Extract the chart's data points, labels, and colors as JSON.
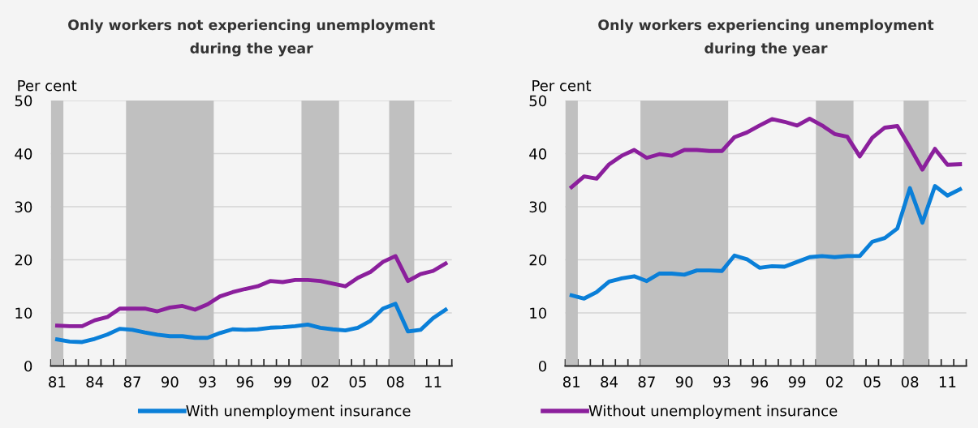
{
  "chart_data": [
    {
      "type": "line",
      "title": "Only workers not experiencing unemployment\nduring the year",
      "ylabel": "Per cent",
      "x": [
        1981,
        1982,
        1983,
        1984,
        1985,
        1986,
        1987,
        1988,
        1989,
        1990,
        1991,
        1992,
        1993,
        1994,
        1995,
        1996,
        1997,
        1998,
        1999,
        2000,
        2001,
        2002,
        2003,
        2004,
        2005,
        2006,
        2007,
        2008,
        2009,
        2010,
        2011,
        2012
      ],
      "series": [
        {
          "name": "With unemployment insurance",
          "color": "#0a7fd8",
          "values": [
            5.0,
            4.6,
            4.5,
            5.1,
            5.9,
            7.0,
            6.8,
            6.3,
            5.9,
            5.6,
            5.6,
            5.3,
            5.3,
            6.2,
            6.9,
            6.8,
            6.9,
            7.2,
            7.3,
            7.5,
            7.8,
            7.2,
            6.9,
            6.7,
            7.2,
            8.5,
            10.8,
            11.7,
            6.5,
            6.8,
            9.0,
            10.6
          ]
        },
        {
          "name": "Without unemployment insurance",
          "color": "#8b1f9c",
          "values": [
            7.6,
            7.5,
            7.5,
            8.6,
            9.2,
            10.8,
            10.8,
            10.8,
            10.3,
            11.0,
            11.3,
            10.6,
            11.6,
            13.1,
            13.9,
            14.5,
            15.0,
            16.0,
            15.8,
            16.2,
            16.2,
            16.0,
            15.5,
            15.0,
            16.6,
            17.7,
            19.6,
            20.7,
            16.0,
            17.3,
            17.9,
            19.3
          ]
        }
      ],
      "xlim": [
        1980.5,
        2012.5
      ],
      "xticks": [
        {
          "value": 1981,
          "label": "81"
        },
        {
          "value": 1984,
          "label": "84"
        },
        {
          "value": 1987,
          "label": "87"
        },
        {
          "value": 1990,
          "label": "90"
        },
        {
          "value": 1993,
          "label": "93"
        },
        {
          "value": 1996,
          "label": "96"
        },
        {
          "value": 1999,
          "label": "99"
        },
        {
          "value": 2002,
          "label": "02"
        },
        {
          "value": 2005,
          "label": "05"
        },
        {
          "value": 2008,
          "label": "08"
        },
        {
          "value": 2011,
          "label": "11"
        },
        {
          "value": 1980.5,
          "label": null
        },
        {
          "value": 1981.5,
          "label": null
        },
        {
          "value": 1982.5,
          "label": null
        },
        {
          "value": 1983.5,
          "label": null
        },
        {
          "value": 1984.5,
          "label": null
        },
        {
          "value": 1985.5,
          "label": null
        },
        {
          "value": 1986.5,
          "label": null
        },
        {
          "value": 1987.5,
          "label": null
        },
        {
          "value": 1988.5,
          "label": null
        },
        {
          "value": 1989.5,
          "label": null
        },
        {
          "value": 1990.5,
          "label": null
        },
        {
          "value": 1991.5,
          "label": null
        },
        {
          "value": 1992.5,
          "label": null
        },
        {
          "value": 1993.5,
          "label": null
        },
        {
          "value": 1994.5,
          "label": null
        },
        {
          "value": 1995.5,
          "label": null
        },
        {
          "value": 1996.5,
          "label": null
        },
        {
          "value": 1997.5,
          "label": null
        },
        {
          "value": 1998.5,
          "label": null
        },
        {
          "value": 1999.5,
          "label": null
        },
        {
          "value": 2000.5,
          "label": null
        },
        {
          "value": 2001.5,
          "label": null
        },
        {
          "value": 2002.5,
          "label": null
        },
        {
          "value": 2003.5,
          "label": null
        },
        {
          "value": 2004.5,
          "label": null
        },
        {
          "value": 2005.5,
          "label": null
        },
        {
          "value": 2006.5,
          "label": null
        },
        {
          "value": 2007.5,
          "label": null
        },
        {
          "value": 2008.5,
          "label": null
        },
        {
          "value": 2009.5,
          "label": null
        },
        {
          "value": 2010.5,
          "label": null
        },
        {
          "value": 2011.5,
          "label": null
        },
        {
          "value": 2012.5,
          "label": null
        }
      ],
      "ylim": [
        0,
        50
      ],
      "yticks": [
        0,
        10,
        20,
        30,
        40,
        50
      ],
      "grid": "y",
      "legend": "bottom",
      "bands": [
        {
          "axis": "x",
          "from": 1980.5,
          "to": 1981.5,
          "color": "#c0c0c0"
        },
        {
          "axis": "x",
          "from": 1986.5,
          "to": 1993.5,
          "color": "#c0c0c0"
        },
        {
          "axis": "x",
          "from": 2000.5,
          "to": 2003.5,
          "color": "#c0c0c0"
        },
        {
          "axis": "x",
          "from": 2007.5,
          "to": 2009.5,
          "color": "#c0c0c0"
        }
      ]
    },
    {
      "type": "line",
      "title": "Only workers experiencing unemployment\nduring the year",
      "ylabel": "Per cent",
      "x": [
        1981,
        1982,
        1983,
        1984,
        1985,
        1986,
        1987,
        1988,
        1989,
        1990,
        1991,
        1992,
        1993,
        1994,
        1995,
        1996,
        1997,
        1998,
        1999,
        2000,
        2001,
        2002,
        2003,
        2004,
        2005,
        2006,
        2007,
        2008,
        2009,
        2010,
        2011,
        2012
      ],
      "series": [
        {
          "color": "#0a7fd8",
          "values": [
            13.3,
            12.7,
            13.9,
            15.9,
            16.5,
            16.9,
            16.0,
            17.4,
            17.4,
            17.2,
            18.0,
            18.0,
            17.9,
            20.8,
            20.1,
            18.5,
            18.8,
            18.7,
            19.6,
            20.5,
            20.7,
            20.5,
            20.7,
            20.7,
            23.4,
            24.1,
            25.9,
            33.5,
            27.0,
            33.9,
            32.1,
            33.3
          ]
        },
        {
          "color": "#8b1f9c",
          "values": [
            33.7,
            35.7,
            35.3,
            38.0,
            39.6,
            40.7,
            39.2,
            39.9,
            39.6,
            40.7,
            40.7,
            40.5,
            40.5,
            43.1,
            44.0,
            45.3,
            46.5,
            46.0,
            45.3,
            46.6,
            45.3,
            43.7,
            43.2,
            39.5,
            43.0,
            44.9,
            45.2,
            41.2,
            37.0,
            40.9,
            37.9,
            38.0
          ]
        }
      ],
      "xlim": [
        1980.5,
        2012.5
      ],
      "xticks": [
        {
          "value": 1981,
          "label": "81"
        },
        {
          "value": 1984,
          "label": "84"
        },
        {
          "value": 1987,
          "label": "87"
        },
        {
          "value": 1990,
          "label": "90"
        },
        {
          "value": 1993,
          "label": "93"
        },
        {
          "value": 1996,
          "label": "96"
        },
        {
          "value": 1999,
          "label": "99"
        },
        {
          "value": 2002,
          "label": "02"
        },
        {
          "value": 2005,
          "label": "05"
        },
        {
          "value": 2008,
          "label": "08"
        },
        {
          "value": 2011,
          "label": "11"
        },
        {
          "value": 1980.5,
          "label": null
        },
        {
          "value": 1981.5,
          "label": null
        },
        {
          "value": 1982.5,
          "label": null
        },
        {
          "value": 1983.5,
          "label": null
        },
        {
          "value": 1984.5,
          "label": null
        },
        {
          "value": 1985.5,
          "label": null
        },
        {
          "value": 1986.5,
          "label": null
        },
        {
          "value": 1987.5,
          "label": null
        },
        {
          "value": 1988.5,
          "label": null
        },
        {
          "value": 1989.5,
          "label": null
        },
        {
          "value": 1990.5,
          "label": null
        },
        {
          "value": 1991.5,
          "label": null
        },
        {
          "value": 1992.5,
          "label": null
        },
        {
          "value": 1993.5,
          "label": null
        },
        {
          "value": 1994.5,
          "label": null
        },
        {
          "value": 1995.5,
          "label": null
        },
        {
          "value": 1996.5,
          "label": null
        },
        {
          "value": 1997.5,
          "label": null
        },
        {
          "value": 1998.5,
          "label": null
        },
        {
          "value": 1999.5,
          "label": null
        },
        {
          "value": 2000.5,
          "label": null
        },
        {
          "value": 2001.5,
          "label": null
        },
        {
          "value": 2002.5,
          "label": null
        },
        {
          "value": 2003.5,
          "label": null
        },
        {
          "value": 2004.5,
          "label": null
        },
        {
          "value": 2005.5,
          "label": null
        },
        {
          "value": 2006.5,
          "label": null
        },
        {
          "value": 2007.5,
          "label": null
        },
        {
          "value": 2008.5,
          "label": null
        },
        {
          "value": 2009.5,
          "label": null
        },
        {
          "value": 2010.5,
          "label": null
        },
        {
          "value": 2011.5,
          "label": null
        },
        {
          "value": 2012.5,
          "label": null
        }
      ],
      "ylim": [
        0,
        50
      ],
      "yticks": [
        0,
        10,
        20,
        30,
        40,
        50
      ],
      "grid": "y",
      "bands": [
        {
          "axis": "x",
          "from": 1980.5,
          "to": 1981.5,
          "color": "#c0c0c0"
        },
        {
          "axis": "x",
          "from": 1986.5,
          "to": 1993.5,
          "color": "#c0c0c0"
        },
        {
          "axis": "x",
          "from": 2000.5,
          "to": 2003.5,
          "color": "#c0c0c0"
        },
        {
          "axis": "x",
          "from": 2007.5,
          "to": 2009.5,
          "color": "#c0c0c0"
        }
      ]
    }
  ]
}
